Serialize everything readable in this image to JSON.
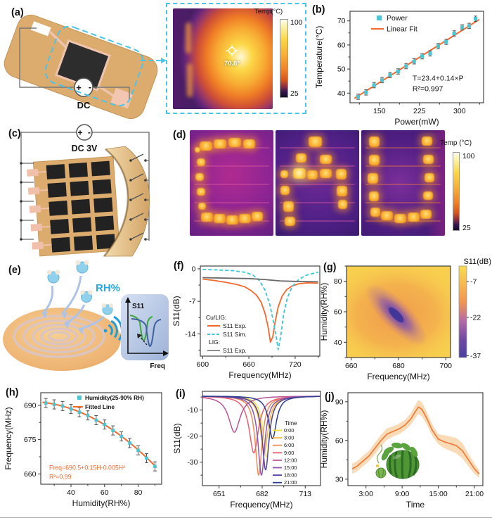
{
  "figure": {
    "panels": {
      "a": {
        "label": "(a)",
        "dc_label": "DC",
        "plus": "+",
        "minus": "-",
        "inset": {
          "colorbar_title": "Temp(°C)",
          "colorbar_max": "100",
          "colorbar_min": "25",
          "spot_temp": "70.8°"
        }
      },
      "b": {
        "label": "(b)"
      },
      "c": {
        "label": "(c)",
        "dc_label": "DC 3V",
        "plus": "+",
        "minus": "-"
      },
      "d": {
        "label": "(d)",
        "letters": [
          "C",
          "A",
          "U"
        ],
        "colorbar": {
          "title": "Temp (°C)",
          "max": "100",
          "min": "25"
        }
      },
      "e": {
        "label": "(e)",
        "rh_label": "RH%",
        "inset": {
          "ylabel": "S11",
          "xlabel": "Freq"
        }
      },
      "f": {
        "label": "(f)"
      },
      "g": {
        "label": "(g)"
      },
      "h": {
        "label": "(h)"
      },
      "i": {
        "label": "(i)"
      },
      "j": {
        "label": "(j)"
      }
    }
  },
  "chart_data": [
    {
      "panel": "b",
      "type": "scatter",
      "xlabel": "Power(mW)",
      "ylabel": "Temperature(°C)",
      "xlim": [
        95,
        345
      ],
      "ylim": [
        36,
        74
      ],
      "xticks": [
        150,
        225,
        300
      ],
      "xminor": [
        112.5,
        187.5,
        262.5,
        337.5
      ],
      "yticks": [
        40,
        50,
        60,
        70
      ],
      "yminor": [
        45,
        55,
        65
      ],
      "series": [
        {
          "name": "Power",
          "type": "scatter",
          "marker": "square",
          "color": "#4cc5d2",
          "yerr": 1.1,
          "x": [
            110,
            125,
            140,
            155,
            170,
            185,
            200,
            215,
            230,
            245,
            260,
            275,
            290,
            305,
            318,
            330
          ],
          "y": [
            38.5,
            40.3,
            43.3,
            45.4,
            47.5,
            49.0,
            51.2,
            53.2,
            55.3,
            56.5,
            59.5,
            61.3,
            64.8,
            67.3,
            67.9,
            70.9
          ]
        },
        {
          "name": "Linear Fit",
          "type": "line",
          "color": "#f4682c",
          "fit": {
            "intercept": 23.4,
            "slope": 0.14
          }
        }
      ],
      "annotation": [
        "T=23.4+0.14×P",
        "R²=0.997"
      ]
    },
    {
      "panel": "f",
      "type": "line",
      "xlabel": "Frequency(MHz)",
      "ylabel": "S11(dB)",
      "xlim": [
        597,
        752
      ],
      "ylim": [
        -18.8,
        0.6
      ],
      "xticks": [
        600,
        660,
        720
      ],
      "xminor": [
        630,
        690,
        750
      ],
      "yticks": [
        0,
        -7,
        -14
      ],
      "yminor": [
        -3.5,
        -10.5,
        -17.5
      ],
      "legend": {
        "group1": "Cu/LIG:",
        "group2": "LIG:",
        "exp": "S11 Exp.",
        "sim": "S11 Sim."
      },
      "series": [
        {
          "name": "Cu/LIG S11 Exp.",
          "color": "#f4682c",
          "dash": false,
          "points": [
            [
              600,
              -2.2
            ],
            [
              615,
              -2.5
            ],
            [
              630,
              -2.9
            ],
            [
              645,
              -3.4
            ],
            [
              655,
              -3.9
            ],
            [
              663,
              -4.7
            ],
            [
              670,
              -5.7
            ],
            [
              676,
              -7.2
            ],
            [
              681,
              -9.6
            ],
            [
              685,
              -12.6
            ],
            [
              688,
              -15.8
            ],
            [
              691,
              -14.6
            ],
            [
              694,
              -11.5
            ],
            [
              698,
              -8.2
            ],
            [
              703,
              -5.9
            ],
            [
              709,
              -4.5
            ],
            [
              716,
              -3.7
            ],
            [
              725,
              -3.2
            ],
            [
              737,
              -3.0
            ],
            [
              750,
              -3.1
            ]
          ]
        },
        {
          "name": "Cu/LIG S11 Sim.",
          "color": "#3ec4d6",
          "dash": true,
          "points": [
            [
              600,
              -0.15
            ],
            [
              620,
              -0.25
            ],
            [
              640,
              -0.4
            ],
            [
              655,
              -0.75
            ],
            [
              665,
              -1.3
            ],
            [
              674,
              -2.6
            ],
            [
              681,
              -4.6
            ],
            [
              687,
              -7.6
            ],
            [
              692,
              -11.5
            ],
            [
              696,
              -15.2
            ],
            [
              698,
              -17.4
            ],
            [
              701,
              -14.8
            ],
            [
              705,
              -9.8
            ],
            [
              710,
              -6.2
            ],
            [
              716,
              -3.9
            ],
            [
              724,
              -2.4
            ],
            [
              734,
              -1.4
            ],
            [
              750,
              -0.7
            ]
          ]
        },
        {
          "name": "LIG S11 Exp.",
          "color": "#6a6a6a",
          "dash": false,
          "points": [
            [
              600,
              -1.9
            ],
            [
              630,
              -2.0
            ],
            [
              660,
              -2.1
            ],
            [
              680,
              -2.3
            ],
            [
              700,
              -2.6
            ],
            [
              720,
              -2.7
            ],
            [
              750,
              -2.8
            ]
          ]
        }
      ]
    },
    {
      "panel": "g",
      "type": "heatmap",
      "xlabel": "Frequency(MHz)",
      "ylabel": "Humidity(RH%)",
      "xlim": [
        658,
        702
      ],
      "ylim": [
        30,
        90
      ],
      "xticks": [
        660,
        680,
        700
      ],
      "xminor": [
        670,
        690
      ],
      "yticks": [
        40,
        60,
        80
      ],
      "yminor": [
        30,
        50,
        70,
        90
      ],
      "background_color": "#f8cf4e",
      "colorbar": {
        "title": "S11(dB)",
        "ticks": [
          -7,
          -22,
          -37
        ],
        "gradient": [
          "#f8dc50",
          "#f6b84e",
          "#ef9550",
          "#b36aa6",
          "#6f4aa3",
          "#4a3f9f"
        ]
      },
      "resonance_ridge": {
        "points": [
          [
            670,
            72
          ],
          [
            674,
            66
          ],
          [
            678,
            60
          ],
          [
            681,
            55
          ],
          [
            685,
            48
          ]
        ],
        "min_s11": -37
      }
    },
    {
      "panel": "h",
      "type": "scatter",
      "xlabel": "Humidity(RH%)",
      "ylabel": "Frequency(MHz)",
      "xlim": [
        22,
        94
      ],
      "ylim": [
        655.5,
        695.5
      ],
      "xticks": [
        40,
        60,
        80
      ],
      "xminor": [
        30,
        50,
        70,
        90
      ],
      "yticks": [
        660,
        675,
        690
      ],
      "yminor": [
        667.5,
        682.5
      ],
      "series": [
        {
          "name": "Humidity(25-90% RH)",
          "type": "scatter",
          "marker": "square",
          "color": "#4cc5d2",
          "yerr": 2.0,
          "x": [
            25,
            30,
            35,
            40,
            45,
            50,
            55,
            60,
            65,
            70,
            75,
            80,
            85,
            90
          ],
          "y": [
            691.0,
            690.4,
            689.7,
            688.4,
            687.0,
            685.6,
            683.5,
            681.6,
            679.0,
            676.4,
            673.5,
            670.3,
            666.9,
            663.3
          ]
        },
        {
          "name": "Fitted Line",
          "type": "line",
          "color": "#f4682c",
          "fit": {
            "a": 690.5,
            "b": 0.15,
            "c": -0.005
          }
        }
      ],
      "annotation": [
        "Freq=690.5+0.15H-0.005H²",
        "R²=0.99"
      ]
    },
    {
      "panel": "i",
      "type": "line",
      "xlabel": "Frequency(MHz)",
      "ylabel": "S11(dB)",
      "xlim": [
        639,
        724
      ],
      "ylim": [
        -39,
        -2.8
      ],
      "xticks": [
        651,
        682,
        713
      ],
      "xminor": [
        666.5,
        697.5
      ],
      "yticks": [
        -10,
        -20,
        -30
      ],
      "yminor": [
        -5,
        -15,
        -25,
        -35
      ],
      "legend_title": "Time",
      "baseline": -4.6,
      "series": [
        {
          "name": "0:00",
          "color": "#f1e13d",
          "center": 685,
          "min": -28,
          "width": 3
        },
        {
          "name": "3:00",
          "color": "#f6b83b",
          "center": 683.5,
          "min": -26,
          "width": 3.4
        },
        {
          "name": "6:00",
          "color": "#f18a51",
          "center": 679.5,
          "min": -35,
          "width": 3
        },
        {
          "name": "9:00",
          "color": "#e95f6d",
          "center": 676,
          "min": -26.5,
          "width": 4
        },
        {
          "name": "12:00",
          "color": "#bb5397",
          "center": 662,
          "min": -18.5,
          "width": 5
        },
        {
          "name": "15:00",
          "color": "#8e57ad",
          "center": 681.5,
          "min": -35,
          "width": 3
        },
        {
          "name": "18:00",
          "color": "#5245a4",
          "center": 684.5,
          "min": -33,
          "width": 3
        },
        {
          "name": "21:00",
          "color": "#2e3d8f",
          "center": 689.5,
          "min": -21,
          "width": 3.4
        }
      ]
    },
    {
      "panel": "j",
      "type": "line-band",
      "xlabel": "Time",
      "ylabel": "Humidity(RH%)",
      "xlim": [
        0,
        22.4
      ],
      "ylim": [
        25,
        97
      ],
      "xticks": [
        {
          "v": 3,
          "l": "3:00"
        },
        {
          "v": 9,
          "l": "9:00"
        },
        {
          "v": 15,
          "l": "15:00"
        },
        {
          "v": 21,
          "l": "21:00"
        }
      ],
      "xminor": [
        6,
        12,
        18
      ],
      "yticks": [
        30,
        60,
        90
      ],
      "yminor": [
        45,
        75
      ],
      "line_color": "#ee7b39",
      "band_color": "#f8d7b0",
      "annotation_image": "watermelon-plant",
      "x": [
        0.7,
        1.5,
        2.5,
        3.5,
        4.5,
        5.5,
        6.5,
        7.5,
        8.5,
        9.5,
        10.5,
        11,
        11.7,
        12.3,
        13,
        14,
        15,
        16,
        17,
        18,
        19,
        20,
        21,
        21.8
      ],
      "y": [
        38,
        40,
        44,
        48,
        54,
        60,
        65,
        67,
        69,
        72,
        77,
        81,
        86,
        84,
        78,
        68,
        61,
        59,
        57.5,
        56,
        52,
        45,
        38,
        34
      ],
      "band": [
        4,
        4,
        4,
        4,
        4.5,
        4.5,
        4.5,
        4,
        4,
        4,
        4.5,
        5,
        5.5,
        5.5,
        5,
        4.5,
        4,
        5,
        5.5,
        6,
        6,
        5,
        4,
        3
      ]
    }
  ]
}
